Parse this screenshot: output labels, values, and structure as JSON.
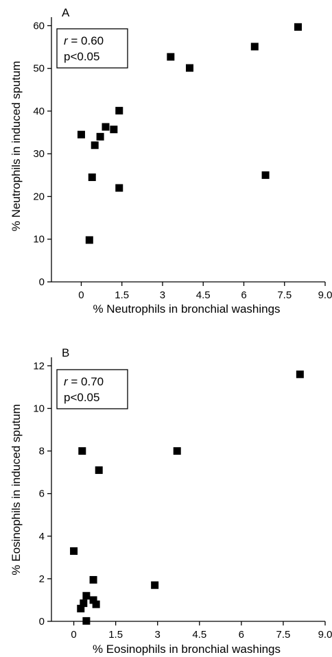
{
  "chart_data": [
    {
      "type": "scatter",
      "panel_label": "A",
      "xlabel": "% Neutrophils in bronchial washings",
      "ylabel": "% Neutrophils in induced sputum",
      "xlim": [
        -1.1,
        9.0
      ],
      "ylim": [
        0,
        62
      ],
      "xticks": [
        0,
        1.5,
        3,
        4.5,
        6,
        7.5,
        9.0
      ],
      "xtick_labels": [
        "0",
        "1.5",
        "3",
        "4.5",
        "6",
        "7.5",
        "9.0"
      ],
      "yticks": [
        0,
        10,
        20,
        30,
        40,
        50,
        60
      ],
      "ytick_labels": [
        "0",
        "10",
        "20",
        "30",
        "40",
        "50",
        "60"
      ],
      "annotation": {
        "r_symbol": "r",
        "r_value": " = 0.60",
        "p_text": "p<0.05"
      },
      "grid": false,
      "marker": "square",
      "color": "#000000",
      "points": [
        {
          "x": 0.0,
          "y": 34.5
        },
        {
          "x": 0.3,
          "y": 9.8
        },
        {
          "x": 0.4,
          "y": 24.5
        },
        {
          "x": 0.5,
          "y": 32.0
        },
        {
          "x": 0.7,
          "y": 34.0
        },
        {
          "x": 0.9,
          "y": 36.3
        },
        {
          "x": 1.2,
          "y": 35.7
        },
        {
          "x": 1.4,
          "y": 40.1
        },
        {
          "x": 1.4,
          "y": 22.0
        },
        {
          "x": 3.3,
          "y": 52.7
        },
        {
          "x": 4.0,
          "y": 50.1
        },
        {
          "x": 6.4,
          "y": 55.1
        },
        {
          "x": 6.8,
          "y": 25.0
        },
        {
          "x": 8.0,
          "y": 59.7
        }
      ]
    },
    {
      "type": "scatter",
      "panel_label": "B",
      "xlabel": "% Eosinophils in bronchial washings",
      "ylabel": "% Eosinophils in induced sputum",
      "xlim": [
        -0.8,
        9.0
      ],
      "ylim": [
        0,
        12.4
      ],
      "xticks": [
        0,
        1.5,
        3,
        4.5,
        6,
        7.5,
        9.0
      ],
      "xtick_labels": [
        "0",
        "1.5",
        "3",
        "4.5",
        "6",
        "7.5",
        "9.0"
      ],
      "yticks": [
        0,
        2,
        4,
        6,
        8,
        10,
        12
      ],
      "ytick_labels": [
        "0",
        "2",
        "4",
        "6",
        "8",
        "10",
        "12"
      ],
      "annotation": {
        "r_symbol": "r",
        "r_value": " = 0.70",
        "p_text": "p<0.05"
      },
      "grid": false,
      "marker": "square",
      "color": "#000000",
      "points": [
        {
          "x": 0.0,
          "y": 3.3
        },
        {
          "x": 0.25,
          "y": 0.6
        },
        {
          "x": 0.3,
          "y": 8.0
        },
        {
          "x": 0.35,
          "y": 0.85
        },
        {
          "x": 0.45,
          "y": 1.2
        },
        {
          "x": 0.45,
          "y": 0.02
        },
        {
          "x": 0.7,
          "y": 1.95
        },
        {
          "x": 0.7,
          "y": 1.0
        },
        {
          "x": 0.8,
          "y": 0.8
        },
        {
          "x": 0.9,
          "y": 7.1
        },
        {
          "x": 2.9,
          "y": 1.7
        },
        {
          "x": 3.7,
          "y": 8.0
        },
        {
          "x": 8.1,
          "y": 11.6
        }
      ]
    }
  ]
}
